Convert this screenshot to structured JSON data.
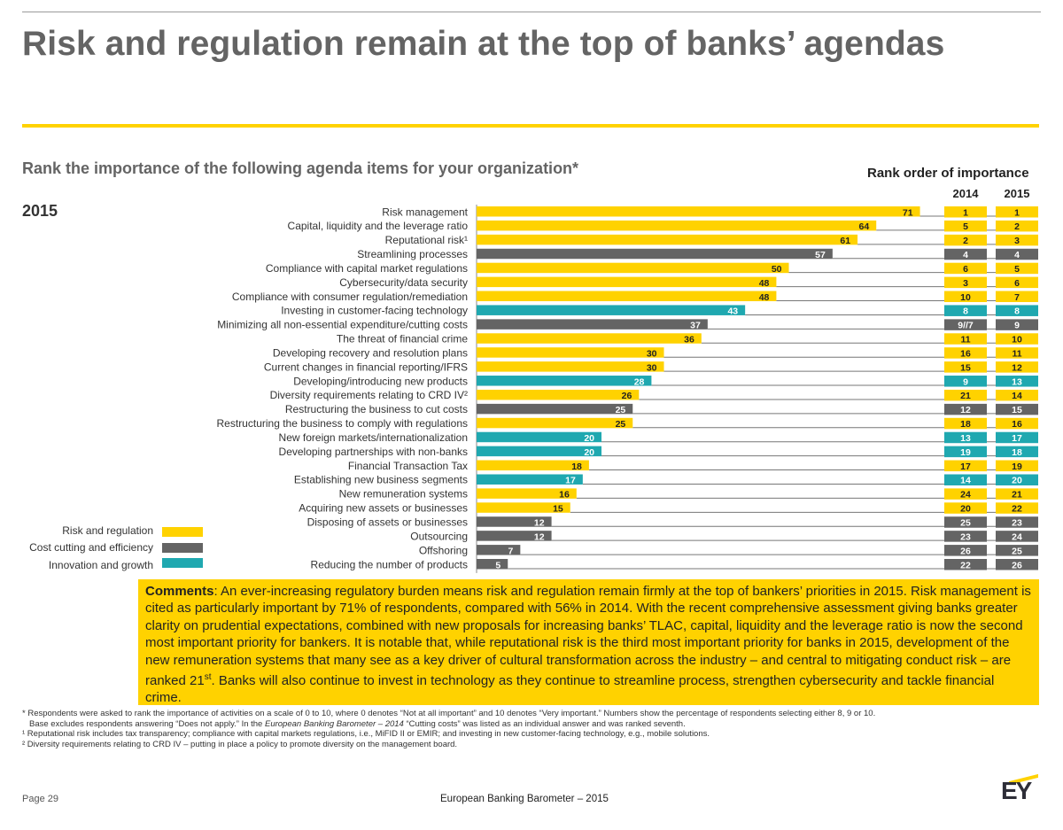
{
  "header": {
    "title": "Risk and regulation remain at the top of banks’ agendas",
    "subtitle": "Rank the importance of the following agenda items for your organization*",
    "year_label": "2015"
  },
  "rank_table": {
    "title": "Rank order of importance",
    "col_2014": "2014",
    "col_2015": "2015"
  },
  "legend": {
    "items": [
      {
        "label": "Risk and regulation",
        "color": "#ffd200"
      },
      {
        "label": "Cost cutting and efficiency",
        "color": "#646464"
      },
      {
        "label": "Innovation and growth",
        "color": "#1fa8b0"
      }
    ]
  },
  "chart_data": {
    "type": "bar",
    "orientation": "horizontal",
    "categories": [
      "Risk management",
      "Capital, liquidity and the leverage ratio",
      "Reputational risk¹",
      "Streamlining processes",
      "Compliance with capital market regulations",
      "Cybersecurity/data security",
      "Compliance with consumer regulation/remediation",
      "Investing in customer-facing technology",
      "Minimizing all non-essential expenditure/cutting costs",
      "The threat of financial crime",
      "Developing recovery and resolution plans",
      "Current changes in financial reporting/IFRS",
      "Developing/introducing new products",
      "Diversity requirements relating to CRD IV²",
      "Restructuring the business to cut costs",
      "Restructuring the business to comply with regulations",
      "New foreign markets/internationalization",
      "Developing partnerships with non-banks",
      "Financial Transaction Tax",
      "Establishing new business segments",
      "New remuneration systems",
      "Acquiring new assets or businesses",
      "Disposing of assets or businesses",
      "Outsourcing",
      "Offshoring",
      "Reducing the number of products"
    ],
    "values": [
      71,
      64,
      61,
      57,
      50,
      48,
      48,
      43,
      37,
      36,
      30,
      30,
      28,
      26,
      25,
      25,
      20,
      20,
      18,
      17,
      16,
      15,
      12,
      12,
      7,
      5
    ],
    "groups": [
      "risk",
      "risk",
      "risk",
      "cost",
      "risk",
      "risk",
      "risk",
      "innov",
      "cost",
      "risk",
      "risk",
      "risk",
      "innov",
      "risk",
      "cost",
      "risk",
      "innov",
      "innov",
      "risk",
      "innov",
      "risk",
      "risk",
      "cost",
      "cost",
      "cost",
      "cost"
    ],
    "group_colors": {
      "risk": "#ffd200",
      "cost": "#646464",
      "innov": "#1fa8b0"
    },
    "rank_2014": [
      "1",
      "5",
      "2",
      "4",
      "6",
      "3",
      "10",
      "8",
      "9//7",
      "11",
      "16",
      "15",
      "9",
      "21",
      "12",
      "18",
      "13",
      "19",
      "17",
      "14",
      "24",
      "20",
      "25",
      "23",
      "26",
      "22"
    ],
    "rank_2015": [
      "1",
      "2",
      "3",
      "4",
      "5",
      "6",
      "7",
      "8",
      "9",
      "10",
      "11",
      "12",
      "13",
      "14",
      "15",
      "16",
      "17",
      "18",
      "19",
      "20",
      "21",
      "22",
      "23",
      "24",
      "25",
      "26"
    ],
    "xlim": [
      0,
      80
    ],
    "title": "",
    "xlabel": "",
    "ylabel": ""
  },
  "comments": {
    "label": "Comments",
    "text_before_sup": ": An ever-increasing regulatory burden means risk and regulation remain firmly at the top of bankers’ priorities in 2015. Risk management is cited as particularly important by 71% of respondents, compared with 56% in 2014. With the recent comprehensive assessment giving banks greater clarity on prudential expectations, combined with new proposals for increasing banks’ TLAC, capital, liquidity and the leverage ratio is now the second most important priority for bankers. It is notable that, while reputational risk is the third most important priority for banks in 2015, development of the new remuneration systems that many see as a key driver of cultural transformation across the industry – and central to mitigating conduct risk – are ranked 21",
    "sup": "st",
    "text_after_sup": ". Banks will also continue to invest in technology as they continue to streamline process, strengthen cybersecurity and tackle financial crime."
  },
  "footnotes": {
    "line1": "* Respondents were asked to rank the importance of activities on a scale of 0 to 10, where 0 denotes “Not at all important” and 10 denotes “Very important.” Numbers show the percentage of respondents selecting either 8, 9 or 10.",
    "line2_before": "Base excludes respondents answering “Does not apply.” In the ",
    "line2_italic": "European Banking Barometer – 2014",
    "line2_after": " “Cutting costs” was listed as an individual answer and was ranked seventh.",
    "line3": "¹ Reputational risk includes tax transparency; compliance with capital markets regulations, i.e., MiFID II or EMIR; and investing in new customer-facing technology, e.g., mobile solutions.",
    "line4": "² Diversity requirements relating to CRD IV – putting in place a policy to promote diversity on the management board."
  },
  "footer": {
    "page": "Page 29",
    "center": "European Banking Barometer – 2015",
    "logo": "EY"
  }
}
